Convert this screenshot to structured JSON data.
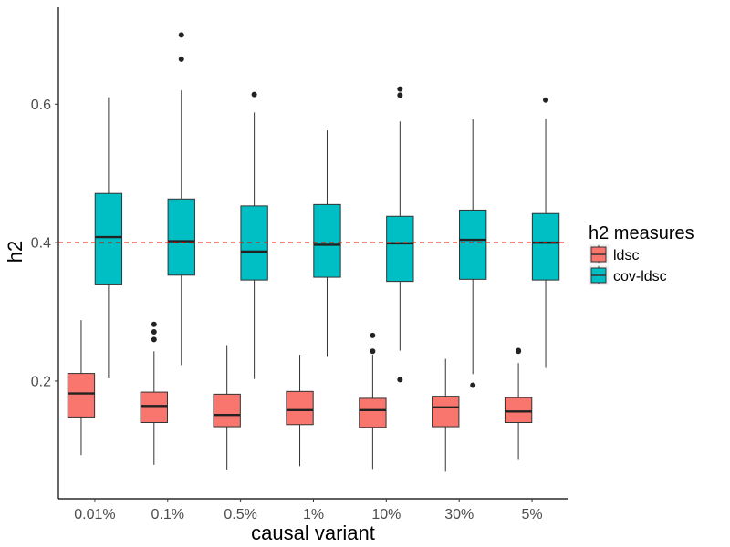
{
  "chart_data": {
    "type": "boxplot",
    "xlabel": "causal variant",
    "ylabel": "h2",
    "categories": [
      "0.01%",
      "0.1%",
      "0.5%",
      "1%",
      "10%",
      "30%",
      "5%"
    ],
    "ylim": [
      0.03,
      0.74
    ],
    "yticks": [
      0.2,
      0.4,
      0.6
    ],
    "ytick_labels": [
      "0.2",
      "0.4",
      "0.6"
    ],
    "reference_line": {
      "y": 0.4,
      "style": "dashed",
      "color": "#ff0000"
    },
    "grid": false,
    "legend": {
      "title": "h2 measures",
      "position": "right",
      "entries": [
        {
          "label": "ldsc",
          "color": "#f8766d"
        },
        {
          "label": "cov-ldsc",
          "color": "#00bfc4"
        }
      ]
    },
    "series": [
      {
        "name": "ldsc",
        "color": "#f8766d",
        "boxes": [
          {
            "min": 0.093,
            "q1": 0.148,
            "median": 0.182,
            "q3": 0.211,
            "max": 0.288,
            "outliers": []
          },
          {
            "min": 0.079,
            "q1": 0.14,
            "median": 0.164,
            "q3": 0.184,
            "max": 0.243,
            "outliers": [
              0.26,
              0.271,
              0.282
            ]
          },
          {
            "min": 0.072,
            "q1": 0.134,
            "median": 0.151,
            "q3": 0.181,
            "max": 0.252,
            "outliers": []
          },
          {
            "min": 0.077,
            "q1": 0.137,
            "median": 0.158,
            "q3": 0.185,
            "max": 0.238,
            "outliers": []
          },
          {
            "min": 0.073,
            "q1": 0.133,
            "median": 0.158,
            "q3": 0.175,
            "max": 0.238,
            "outliers": [
              0.243,
              0.266
            ]
          },
          {
            "min": 0.069,
            "q1": 0.134,
            "median": 0.162,
            "q3": 0.178,
            "max": 0.232,
            "outliers": []
          },
          {
            "min": 0.086,
            "q1": 0.14,
            "median": 0.156,
            "q3": 0.176,
            "max": 0.226,
            "outliers": [
              0.243,
              0.244
            ]
          }
        ]
      },
      {
        "name": "cov-ldsc",
        "color": "#00bfc4",
        "boxes": [
          {
            "min": 0.204,
            "q1": 0.339,
            "median": 0.408,
            "q3": 0.471,
            "max": 0.61,
            "outliers": []
          },
          {
            "min": 0.223,
            "q1": 0.353,
            "median": 0.402,
            "q3": 0.463,
            "max": 0.62,
            "outliers": [
              0.665,
              0.7
            ]
          },
          {
            "min": 0.203,
            "q1": 0.346,
            "median": 0.387,
            "q3": 0.453,
            "max": 0.588,
            "outliers": [
              0.614
            ]
          },
          {
            "min": 0.235,
            "q1": 0.35,
            "median": 0.397,
            "q3": 0.455,
            "max": 0.562,
            "outliers": []
          },
          {
            "min": 0.244,
            "q1": 0.344,
            "median": 0.399,
            "q3": 0.438,
            "max": 0.575,
            "outliers": [
              0.202,
              0.613,
              0.622
            ]
          },
          {
            "min": 0.21,
            "q1": 0.347,
            "median": 0.404,
            "q3": 0.447,
            "max": 0.578,
            "outliers": [
              0.194
            ]
          },
          {
            "min": 0.219,
            "q1": 0.346,
            "median": 0.4,
            "q3": 0.442,
            "max": 0.579,
            "outliers": [
              0.606
            ]
          }
        ]
      }
    ]
  }
}
